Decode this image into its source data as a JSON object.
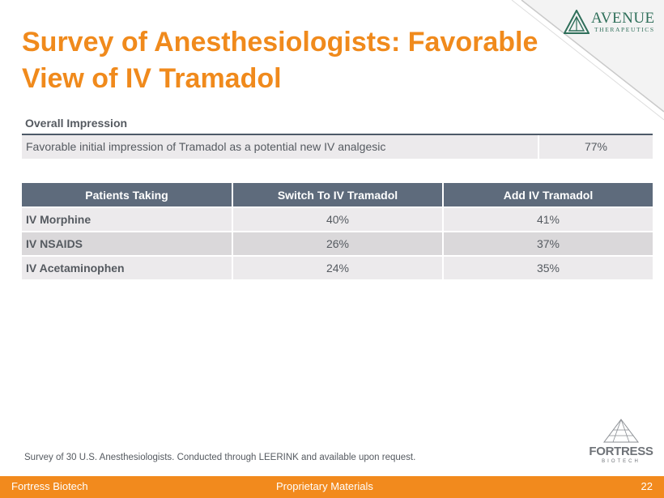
{
  "slide": {
    "title_line1": "Survey of Anesthesiologists: Favorable",
    "title_line2": "View of IV Tramadol"
  },
  "brand": {
    "avenue_name": "AVENUE",
    "avenue_sub": "THERAPEUTICS",
    "fortress_name": "FORTRESS",
    "fortress_sub": "BIOTECH",
    "accent_color": "#f08a1c",
    "header_color": "#5e6b7c"
  },
  "overall": {
    "heading": "Overall Impression",
    "description": "Favorable initial impression of Tramadol as a potential new IV analgesic",
    "value": "77%"
  },
  "patients_table": {
    "headers": [
      "Patients Taking",
      "Switch To IV Tramadol",
      "Add IV Tramadol"
    ],
    "rows": [
      {
        "drug": "IV Morphine",
        "switch": "40%",
        "add": "41%"
      },
      {
        "drug": "IV NSAIDS",
        "switch": "26%",
        "add": "37%"
      },
      {
        "drug": "IV Acetaminophen",
        "switch": "24%",
        "add": "35%"
      }
    ]
  },
  "footnote": "Survey of 30 U.S. Anesthesiologists. Conducted through LEERINK and available upon request.",
  "footer": {
    "company": "Fortress Biotech",
    "label": "Proprietary Materials",
    "page_number": "22"
  }
}
